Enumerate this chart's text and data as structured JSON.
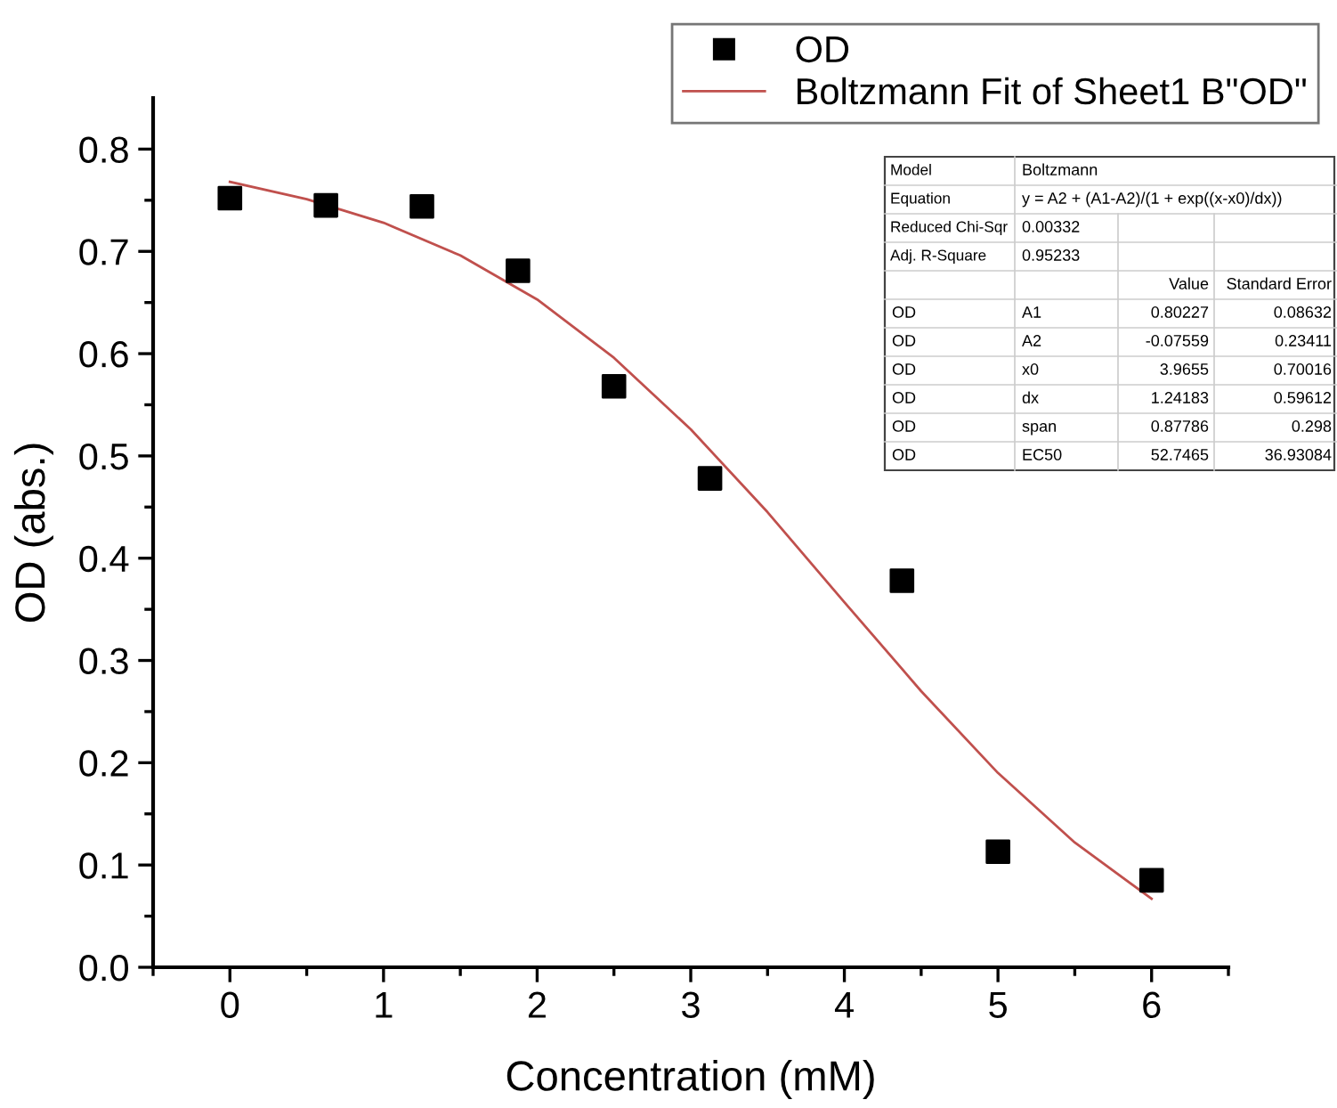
{
  "chart_data": {
    "type": "scatter",
    "xlabel": "Concentration (mM)",
    "ylabel": "OD (abs.)",
    "series": [
      {
        "name": "OD",
        "color": "#000000",
        "marker": "square",
        "x": [
          0,
          0.625,
          1.25,
          1.875,
          2.5,
          3.125,
          4.375,
          5,
          6
        ],
        "values": [
          0.752,
          0.745,
          0.744,
          0.681,
          0.568,
          0.478,
          0.378,
          0.113,
          0.085
        ]
      },
      {
        "name": "Boltzmann Fit of Sheet1 B\"OD\"",
        "type": "line",
        "color": "#c0504d",
        "marker": "none",
        "line_style": "solid",
        "x": [
          0,
          0.5,
          1,
          1.5,
          2,
          2.5,
          3,
          3.5,
          4,
          4.5,
          5,
          5.5,
          6
        ],
        "values": [
          0.768,
          0.751,
          0.728,
          0.696,
          0.653,
          0.596,
          0.526,
          0.445,
          0.357,
          0.27,
          0.19,
          0.122,
          0.067
        ]
      }
    ],
    "xlim": [
      -0.5,
      6.5
    ],
    "ylim": [
      0,
      0.85
    ],
    "xticks": [
      0,
      1,
      2,
      3,
      4,
      5,
      6,
      {
        "value": -0.5,
        "label": null
      },
      {
        "value": 0.5,
        "label": null
      },
      {
        "value": 1.5,
        "label": null
      },
      {
        "value": 2.5,
        "label": null
      },
      {
        "value": 3.5,
        "label": null
      },
      {
        "value": 4.5,
        "label": null
      },
      {
        "value": 5.5,
        "label": null
      },
      {
        "value": 6.5,
        "label": null
      }
    ],
    "yticks": [
      {
        "value": 0,
        "label": "0.0"
      },
      0.1,
      0.2,
      0.3,
      0.4,
      0.5,
      0.6,
      0.7,
      0.8,
      {
        "value": 0.05,
        "label": null
      },
      {
        "value": 0.15,
        "label": null
      },
      {
        "value": 0.25,
        "label": null
      },
      {
        "value": 0.35,
        "label": null
      },
      {
        "value": 0.45,
        "label": null
      },
      {
        "value": 0.55,
        "label": null
      },
      {
        "value": 0.65,
        "label": null
      },
      {
        "value": 0.75,
        "label": null
      }
    ],
    "grid": false,
    "legend": "top right",
    "annotations": [
      "Model",
      "Boltzmann",
      "Equation",
      "y = A2 + (A1-A2)/(1 + exp((x-x0)/dx))",
      "Reduced Chi-Sqr",
      "0.00332",
      "Adj. R-Square",
      "0.95233",
      "Value",
      "Standard Error",
      "OD",
      "A1",
      "0.80227",
      "0.08632",
      "OD",
      "A2",
      "-0.07559",
      "0.23411",
      "OD",
      "x0",
      "3.9655",
      "0.70016",
      "OD",
      "dx",
      "1.24183",
      "0.59612",
      "OD",
      "span",
      "0.87786",
      "0.298",
      "OD",
      "EC50",
      "52.7465",
      "36.93084"
    ]
  }
}
